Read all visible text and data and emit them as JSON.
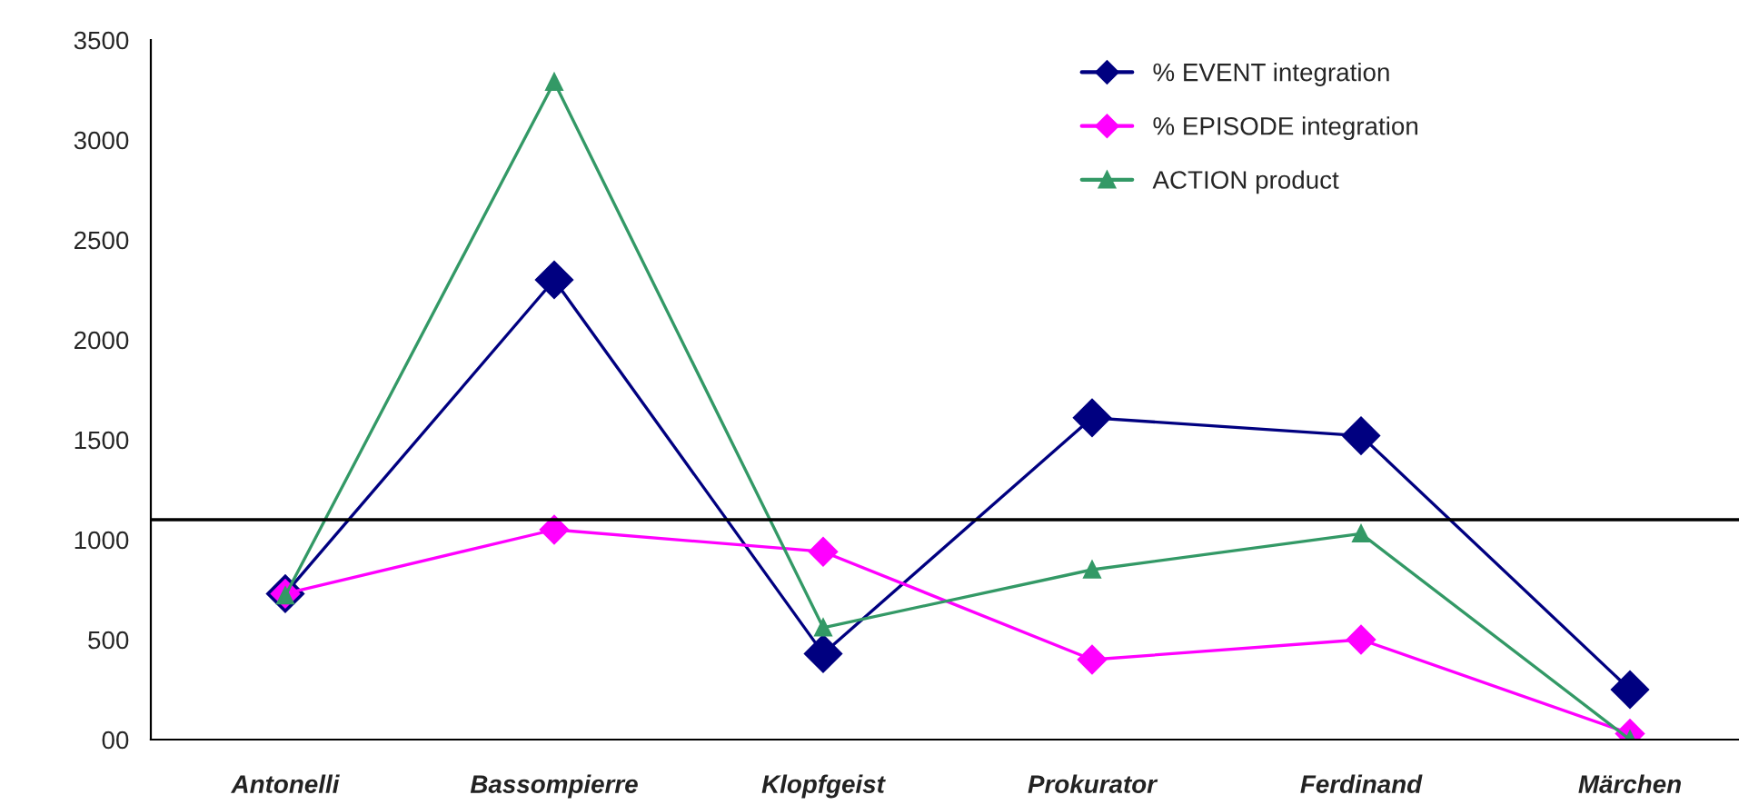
{
  "chart_data": {
    "type": "line",
    "categories": [
      "Antonelli",
      "Bassompierre",
      "Klopfgeist",
      "Prokurator",
      "Ferdinand",
      "Märchen"
    ],
    "series": [
      {
        "name": "% EVENT integration",
        "color": "#000080",
        "marker": "diamond",
        "values": [
          730,
          2300,
          430,
          1610,
          1520,
          250
        ]
      },
      {
        "name": "% EPISODE integration",
        "color": "#ff00ff",
        "marker": "diamond",
        "values": [
          730,
          1050,
          940,
          400,
          500,
          30
        ]
      },
      {
        "name": "ACTION product",
        "color": "#339966",
        "marker": "triangle",
        "values": [
          720,
          3290,
          560,
          850,
          1030,
          0
        ]
      }
    ],
    "ylim": [
      0,
      3500
    ],
    "yticks": [
      {
        "value": 0,
        "label": "00"
      },
      500,
      1000,
      1500,
      2000,
      2500,
      3000,
      3500
    ],
    "ref_lines": [
      {
        "axis": "y",
        "value": 1100,
        "color": "#000000"
      }
    ],
    "grid": false,
    "legend": "top right",
    "line_style": "solid"
  }
}
